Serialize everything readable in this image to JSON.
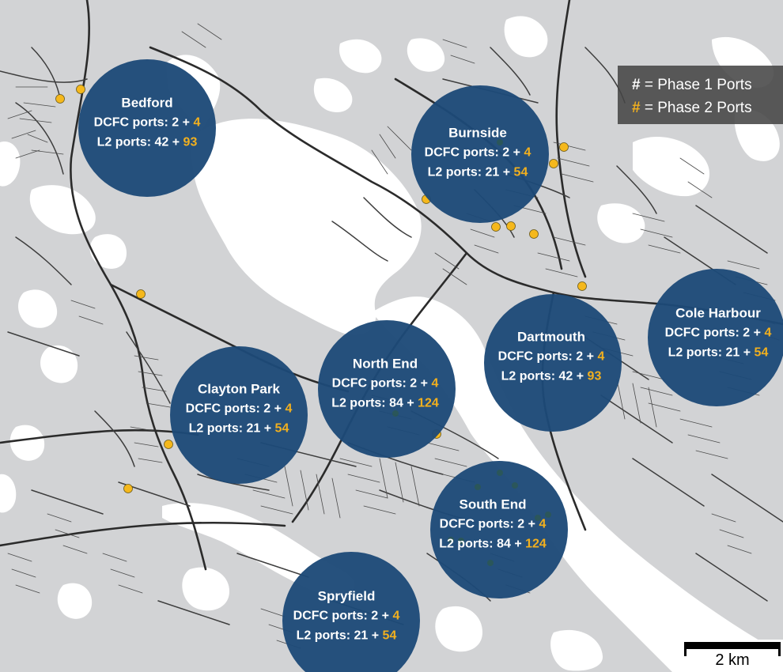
{
  "legend": {
    "phase1_symbol": "#",
    "phase1_text": " = Phase 1 Ports",
    "phase2_symbol": "#",
    "phase2_text": " = Phase 2 Ports"
  },
  "colors": {
    "land": "#d2d3d5",
    "water": "#ffffff",
    "road": "#3d3d3d",
    "zone": "#1d4a78",
    "phase2": "#f2b01e",
    "station": "#f5b81c"
  },
  "zones": [
    {
      "name": "Bedford",
      "dcfc_label": "DCFC ports: ",
      "dcfc_p1": "2",
      "dcfc_p2": "4",
      "l2_label": "L2 ports: ",
      "l2_p1": "42",
      "l2_p2": "93"
    },
    {
      "name": "Burnside",
      "dcfc_label": "DCFC ports: ",
      "dcfc_p1": "2",
      "dcfc_p2": "4",
      "l2_label": "L2 ports: ",
      "l2_p1": "21",
      "l2_p2": "54"
    },
    {
      "name": "Cole Harbour",
      "dcfc_label": "DCFC ports: ",
      "dcfc_p1": "2",
      "dcfc_p2": "4",
      "l2_label": "L2 ports: ",
      "l2_p1": "21",
      "l2_p2": "54"
    },
    {
      "name": "Dartmouth",
      "dcfc_label": "DCFC ports: ",
      "dcfc_p1": "2",
      "dcfc_p2": "4",
      "l2_label": "L2 ports: ",
      "l2_p1": "42",
      "l2_p2": "93"
    },
    {
      "name": "North End",
      "dcfc_label": "DCFC ports: ",
      "dcfc_p1": "2",
      "dcfc_p2": "4",
      "l2_label": "L2 ports: ",
      "l2_p1": "84",
      "l2_p2": "124"
    },
    {
      "name": "Clayton Park",
      "dcfc_label": "DCFC ports: ",
      "dcfc_p1": "2",
      "dcfc_p2": "4",
      "l2_label": "L2 ports: ",
      "l2_p1": "21",
      "l2_p2": "54"
    },
    {
      "name": "South End",
      "dcfc_label": "DCFC ports: ",
      "dcfc_p1": "2",
      "dcfc_p2": "4",
      "l2_label": "L2 ports: ",
      "l2_p1": "84",
      "l2_p2": "124"
    },
    {
      "name": "Spryfield",
      "dcfc_label": "DCFC ports: ",
      "dcfc_p1": "2",
      "dcfc_p2": "4",
      "l2_label": "L2 ports: ",
      "l2_p1": "21",
      "l2_p2": "54"
    }
  ],
  "scale": {
    "label": "2 km"
  }
}
